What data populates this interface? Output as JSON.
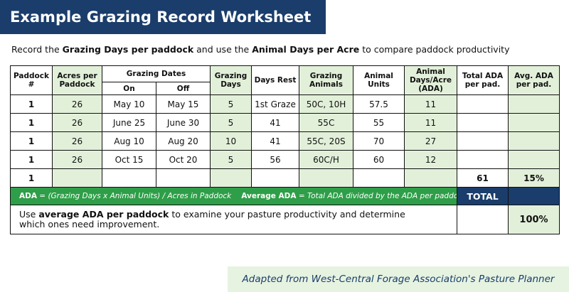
{
  "header": {
    "title": "Example Grazing Record Worksheet",
    "subtitle": [
      "Record the ",
      "Grazing Days per paddock",
      " and use the ",
      "Animal Days per Acre",
      " to compare paddock productivity"
    ]
  },
  "table": {
    "headers": [
      "Paddock #",
      "Acres per Paddock",
      "Grazing Dates",
      "Grazing Days",
      "Days Rest",
      "Grazing Animals",
      "Animal Units",
      "Animal Days/Acre (ADA)",
      "Total ADA per pad.",
      "Avg. ADA per pad."
    ],
    "subheaders": [
      "On",
      "Off"
    ],
    "rows": [
      [
        "1",
        "26",
        "May 10",
        "May 15",
        "5",
        "1st Graze",
        "50C, 10H",
        "57.5",
        "11",
        null,
        null
      ],
      [
        "1",
        "26",
        "June 25",
        "June 30",
        "5",
        "41",
        "55C",
        "55",
        "11",
        null,
        null
      ],
      [
        "1",
        "26",
        "Aug 10",
        "Aug 20",
        "10",
        "41",
        "55C, 20S",
        "70",
        "27",
        null,
        null
      ],
      [
        "1",
        "26",
        "Oct 15",
        "Oct 20",
        "5",
        "56",
        "60C/H",
        "60",
        "12",
        null,
        null
      ],
      [
        "1",
        null,
        null,
        null,
        null,
        null,
        null,
        null,
        null,
        "61",
        "15%"
      ]
    ],
    "legend": [
      "ADA",
      " = (Grazing Days x Animal Units) / Acres in Paddock",
      "Average ADA",
      " = Total ADA divided by the ADA per paddock"
    ],
    "total_label": "TOTAL",
    "note": [
      "Use ",
      "average ADA per paddock",
      " to examine your pasture productivity and determine which ones need improvement."
    ],
    "note_value": "100%"
  },
  "footer": {
    "credit": "Adapted from West-Central Forage Association's Pasture Planner"
  }
}
